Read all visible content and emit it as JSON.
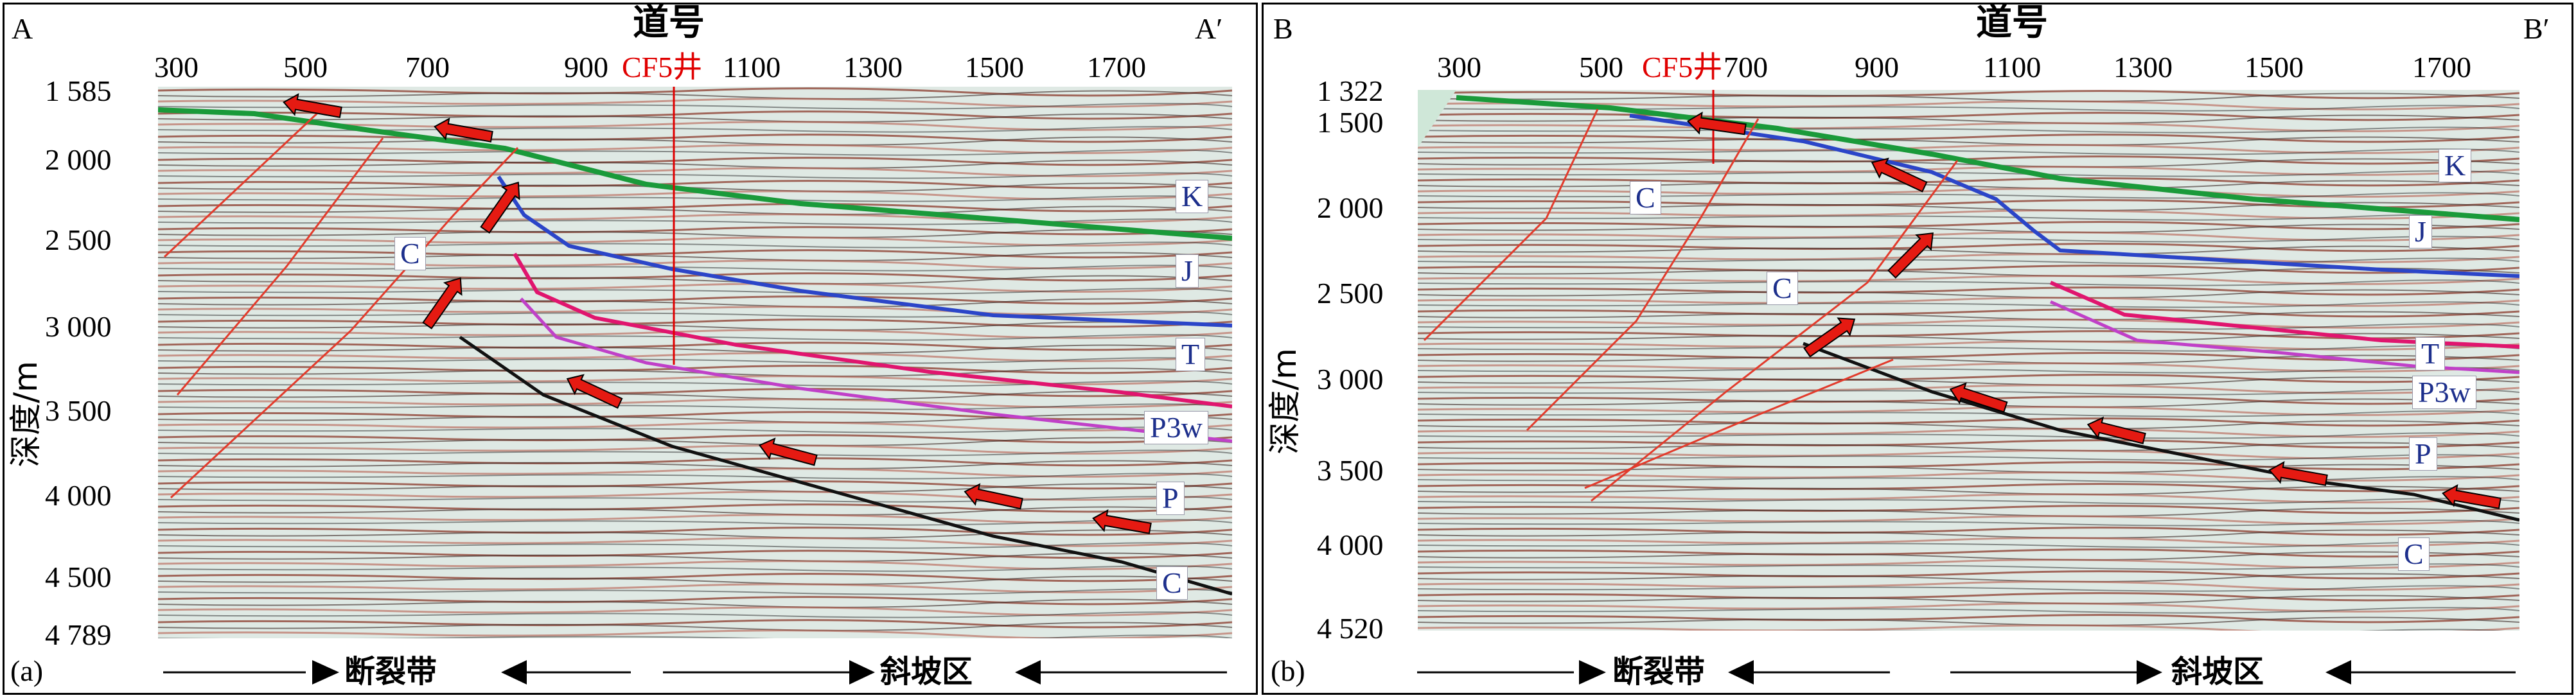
{
  "panels": [
    {
      "corner_left": "A",
      "corner_right": "A′",
      "panel_label": "(a)",
      "x_title": "道号",
      "x_ticks": [
        "300",
        "500",
        "700",
        "900",
        "1100",
        "1300",
        "1500",
        "1700"
      ],
      "well_label": "CF5井",
      "y_title": "深度/m",
      "y_ticks": [
        "1 585",
        "2 000",
        "2 500",
        "3 000",
        "3 500",
        "4 000",
        "4 500",
        "4 789"
      ],
      "strata": [
        "K",
        "J",
        "T",
        "P3w",
        "P",
        "C",
        "C"
      ],
      "zones": [
        "断裂带",
        "斜坡区"
      ]
    },
    {
      "corner_left": "B",
      "corner_right": "B′",
      "panel_label": "(b)",
      "x_title": "道号",
      "x_ticks": [
        "300",
        "500",
        "700",
        "900",
        "1100",
        "1300",
        "1500",
        "1700"
      ],
      "well_label": "CF5井",
      "y_title": "深度/m",
      "y_ticks": [
        "1 322",
        "1 500",
        "2 000",
        "2 500",
        "3 000",
        "3 500",
        "4 000",
        "4 520"
      ],
      "strata": [
        "K",
        "J",
        "T",
        "P3w",
        "P",
        "C",
        "C",
        "C"
      ],
      "zones": [
        "断裂带",
        "斜坡区"
      ]
    }
  ],
  "colors": {
    "k_horizon": "#1a9a3a",
    "j_horizon": "#2b45c8",
    "t_horizon": "#e0156e",
    "p3w_horizon": "#c040c8",
    "p_horizon": "#111111",
    "fault": "#e23b2c",
    "arrow": "#e51a12",
    "well": "#e00000",
    "seismic_bg": "#dfe9e4"
  }
}
